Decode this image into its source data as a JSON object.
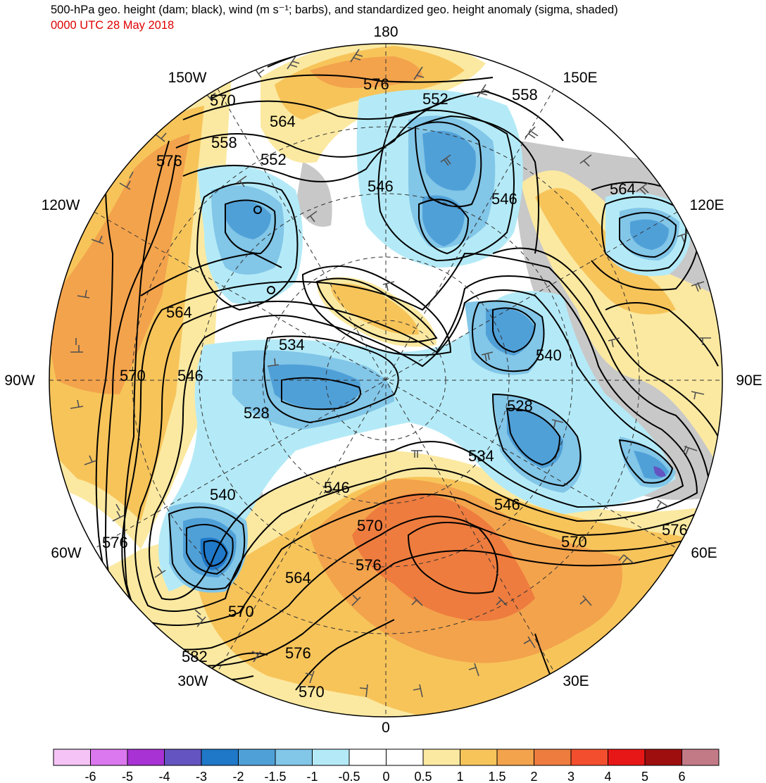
{
  "title": "500-hPa geo. height (dam; black), wind (m s⁻¹; barbs), and standardized geo. height anomaly (sigma, shaded)",
  "valid_time": "0000 UTC 28 May 2018",
  "longitude_labels": [
    "180",
    "150E",
    "120E",
    "90E",
    "60E",
    "30E",
    "0",
    "30W",
    "60W",
    "90W",
    "120W",
    "150W"
  ],
  "contour_labels": [
    "576",
    "570",
    "564",
    "558",
    "552",
    "546",
    "552",
    "558",
    "576",
    "570",
    "564",
    "546",
    "534",
    "528",
    "546",
    "540",
    "528",
    "534",
    "546",
    "570",
    "576",
    "540",
    "570",
    "576",
    "564",
    "546",
    "570",
    "576",
    "582",
    "570",
    "564"
  ],
  "colorbar": {
    "ticks": [
      "-6",
      "-5",
      "-4",
      "-3",
      "-2",
      "-1.5",
      "-1",
      "-0.5",
      "0",
      "0.5",
      "1",
      "1.5",
      "2",
      "3",
      "4",
      "5",
      "6"
    ],
    "colors": [
      "#f5c3f5",
      "#dc78ef",
      "#a832d3",
      "#6454c1",
      "#1f78c8",
      "#50a0d8",
      "#82c6e8",
      "#b4eaf7",
      "#ffffff",
      "#ffffff",
      "#fbe9a1",
      "#f7c45a",
      "#f3a34c",
      "#ee7c3e",
      "#f34e2e",
      "#e81717",
      "#9e0e0e",
      "#c27a87"
    ]
  },
  "colors": {
    "land": "#c8c8c8",
    "contour": "#000000",
    "barb": "#505050",
    "time_text": "#e00000"
  }
}
